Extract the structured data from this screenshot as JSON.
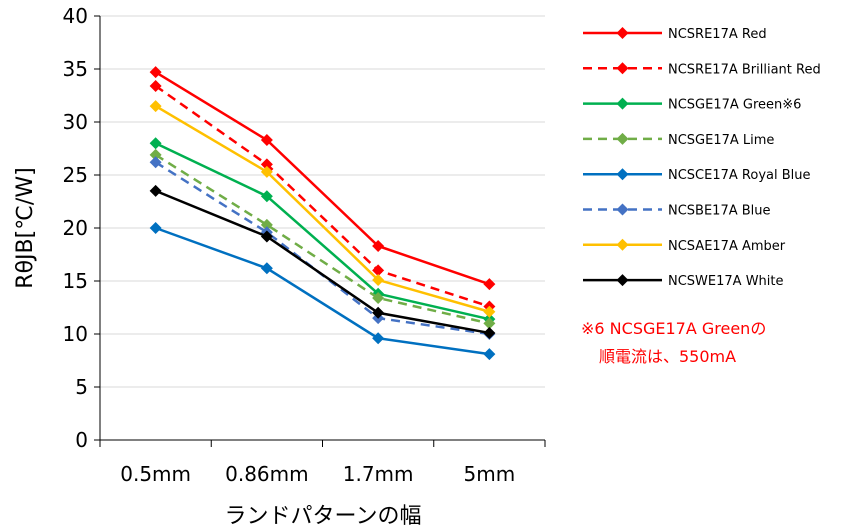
{
  "chart_data": {
    "type": "line",
    "title": "",
    "xlabel": "ランドパターンの幅",
    "ylabel": "RθJB[℃/W]",
    "categories": [
      "0.5mm",
      "0.86mm",
      "1.7mm",
      "5mm"
    ],
    "ylim": [
      0,
      40
    ],
    "yticks": [
      "0",
      "5",
      "10",
      "15",
      "20",
      "25",
      "30",
      "35",
      "40"
    ],
    "grid": true,
    "legend_position": "right",
    "series": [
      {
        "name": "NCSRE17A Red",
        "values": [
          34.7,
          28.3,
          18.3,
          14.7
        ],
        "color": "#ff0000",
        "dashed": false
      },
      {
        "name": "NCSRE17A Brilliant Red",
        "values": [
          33.4,
          26.0,
          16.0,
          12.6
        ],
        "color": "#ff0000",
        "dashed": true
      },
      {
        "name": "NCSGE17A Green※6",
        "values": [
          28.0,
          23.0,
          13.8,
          11.4
        ],
        "color": "#00b050",
        "dashed": false
      },
      {
        "name": "NCSGE17A Lime",
        "values": [
          26.9,
          20.3,
          13.4,
          11.0
        ],
        "color": "#70ad47",
        "dashed": true
      },
      {
        "name": "NCSCE17A Royal Blue",
        "values": [
          20.0,
          16.2,
          9.6,
          8.1
        ],
        "color": "#0070c0",
        "dashed": false
      },
      {
        "name": "NCSBE17A Blue",
        "values": [
          26.2,
          19.6,
          11.5,
          10.0
        ],
        "color": "#4472c4",
        "dashed": true
      },
      {
        "name": "NCSAE17A Amber",
        "values": [
          31.5,
          25.3,
          15.1,
          12.1
        ],
        "color": "#ffc000",
        "dashed": false
      },
      {
        "name": "NCSWE17A White",
        "values": [
          23.5,
          19.2,
          12.0,
          10.1
        ],
        "color": "#000000",
        "dashed": false
      }
    ],
    "annotation": {
      "line1": "※6 NCSGE17A Greenの",
      "line2": "順電流は、550mA"
    }
  }
}
